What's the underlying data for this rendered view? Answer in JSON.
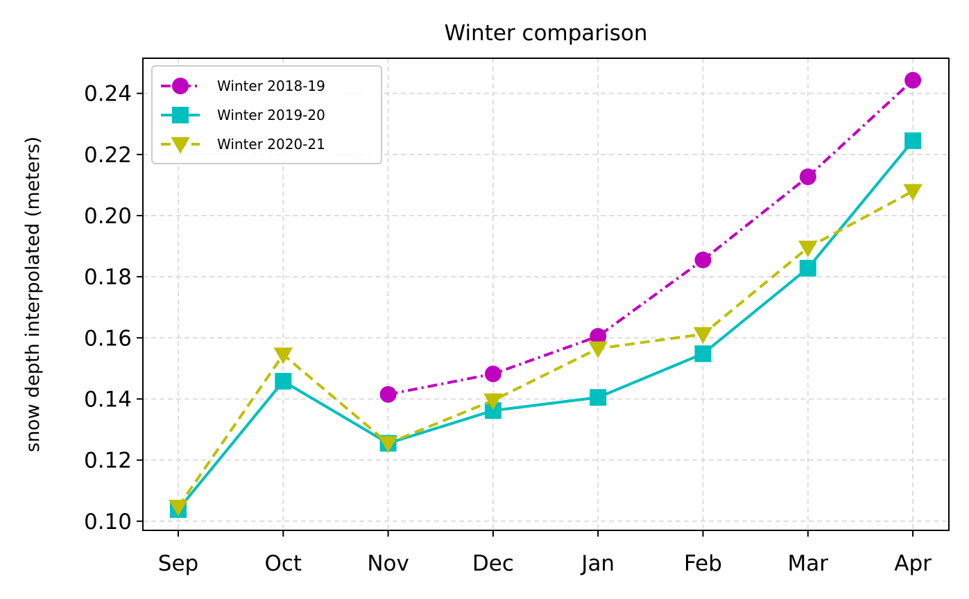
{
  "chart_data": {
    "type": "line",
    "title": "Winter comparison",
    "xlabel": "",
    "ylabel": "snow depth interpolated (meters)",
    "categories": [
      "Sep",
      "Oct",
      "Nov",
      "Dec",
      "Jan",
      "Feb",
      "Mar",
      "Apr"
    ],
    "ylim": [
      0.097,
      0.2515
    ],
    "yticks": [
      "0.10",
      "0.12",
      "0.14",
      "0.16",
      "0.18",
      "0.20",
      "0.22",
      "0.24"
    ],
    "grid": true,
    "legend_position": "upper-left",
    "series": [
      {
        "name": "Winter 2018-19",
        "color": "#bf00bf",
        "marker": "circle",
        "line_style": "dash-dot",
        "values": [
          null,
          null,
          0.1415,
          0.1482,
          0.1605,
          0.1855,
          0.2127,
          0.2443
        ]
      },
      {
        "name": "Winter 2019-20",
        "color": "#00bfbf",
        "marker": "square",
        "line_style": "solid",
        "values": [
          0.1038,
          0.1458,
          0.1255,
          0.1362,
          0.1405,
          0.1548,
          0.1828,
          0.2245
        ]
      },
      {
        "name": "Winter 2020-21",
        "color": "#bfbf00",
        "marker": "triangle-down",
        "line_style": "dashed",
        "values": [
          0.1047,
          0.1545,
          0.1255,
          0.1395,
          0.1565,
          0.1612,
          0.1895,
          0.208
        ]
      }
    ]
  }
}
